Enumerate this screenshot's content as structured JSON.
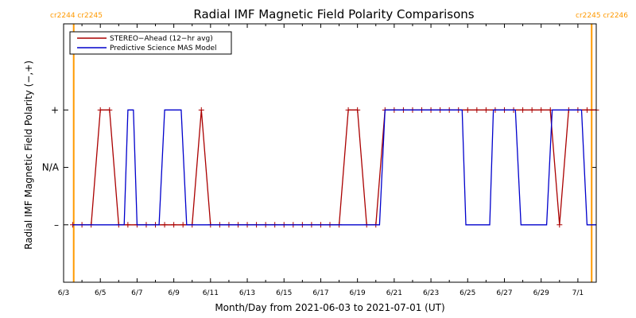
{
  "chart_data": {
    "type": "line",
    "title": "Radial IMF Magnetic Field Polarity Comparisons",
    "xlabel": "Month/Day from 2021-06-03 to 2021-07-01 (UT)",
    "ylabel": "Radial IMF Magnetic Field Polarity (−,+)",
    "xlim": [
      0,
      29
    ],
    "ylim": [
      -2,
      2.5
    ],
    "x_ticks": [
      {
        "x": 0,
        "label": "6/3"
      },
      {
        "x": 2,
        "label": "6/5"
      },
      {
        "x": 4,
        "label": "6/7"
      },
      {
        "x": 6,
        "label": "6/9"
      },
      {
        "x": 8,
        "label": "6/11"
      },
      {
        "x": 10,
        "label": "6/13"
      },
      {
        "x": 12,
        "label": "6/15"
      },
      {
        "x": 14,
        "label": "6/17"
      },
      {
        "x": 16,
        "label": "6/19"
      },
      {
        "x": 18,
        "label": "6/21"
      },
      {
        "x": 20,
        "label": "6/23"
      },
      {
        "x": 22,
        "label": "6/25"
      },
      {
        "x": 24,
        "label": "6/27"
      },
      {
        "x": 26,
        "label": "6/29"
      },
      {
        "x": 28,
        "label": "7/1"
      }
    ],
    "y_ticks": [
      {
        "y": 1,
        "label": "+"
      },
      {
        "y": 0,
        "label": "N/A"
      },
      {
        "y": -1,
        "label": "–"
      }
    ],
    "cr_markers": [
      {
        "x": 0.55,
        "labels": [
          "cr2244",
          "cr2245"
        ]
      },
      {
        "x": 28.75,
        "labels": [
          "cr2245",
          "cr2246"
        ]
      }
    ],
    "legend": {
      "placement": "top-left"
    },
    "series": [
      {
        "name": "STEREO−Ahead (12−hr avg)",
        "color": "#aa0000",
        "markers": true,
        "x": [
          0.5,
          1.0,
          1.5,
          2.0,
          2.5,
          3.0,
          3.5,
          4.0,
          4.5,
          5.0,
          5.5,
          6.0,
          6.5,
          7.0,
          7.5,
          8.0,
          8.5,
          9.0,
          9.5,
          10.0,
          10.5,
          11.0,
          11.5,
          12.0,
          12.5,
          13.0,
          13.5,
          14.0,
          14.5,
          15.0,
          15.5,
          16.0,
          16.5,
          17.0,
          17.5,
          18.0,
          18.5,
          19.0,
          19.5,
          20.0,
          20.5,
          21.0,
          21.5,
          22.0,
          22.5,
          23.0,
          23.5,
          24.0,
          24.5,
          25.0,
          25.5,
          26.0,
          26.5,
          27.0,
          27.5,
          28.0,
          28.5,
          29.0
        ],
        "y": [
          -1,
          -1,
          -1,
          1,
          1,
          -1,
          -1,
          -1,
          -1,
          -1,
          -1,
          -1,
          -1,
          -1,
          1,
          -1,
          -1,
          -1,
          -1,
          -1,
          -1,
          -1,
          -1,
          -1,
          -1,
          -1,
          -1,
          -1,
          -1,
          -1,
          1,
          1,
          -1,
          -1,
          1,
          1,
          1,
          1,
          1,
          1,
          1,
          1,
          1,
          1,
          1,
          1,
          1,
          1,
          1,
          1,
          1,
          1,
          1,
          -1,
          1,
          1,
          1,
          1
        ]
      },
      {
        "name": "Predictive Science MAS Model",
        "color": "#0000cc",
        "markers": false,
        "x": [
          0.5,
          3.3,
          3.5,
          3.8,
          4.0,
          5.2,
          5.5,
          6.4,
          6.7,
          17.2,
          17.5,
          21.7,
          21.9,
          23.2,
          23.4,
          24.6,
          24.9,
          26.3,
          26.6,
          27.0,
          27.3,
          28.2,
          28.5,
          29.0
        ],
        "y": [
          -1,
          -1,
          1,
          1,
          -1,
          -1,
          1,
          1,
          -1,
          -1,
          1,
          1,
          -1,
          -1,
          1,
          1,
          -1,
          -1,
          1,
          1,
          1,
          1,
          -1,
          -1
        ]
      }
    ]
  }
}
